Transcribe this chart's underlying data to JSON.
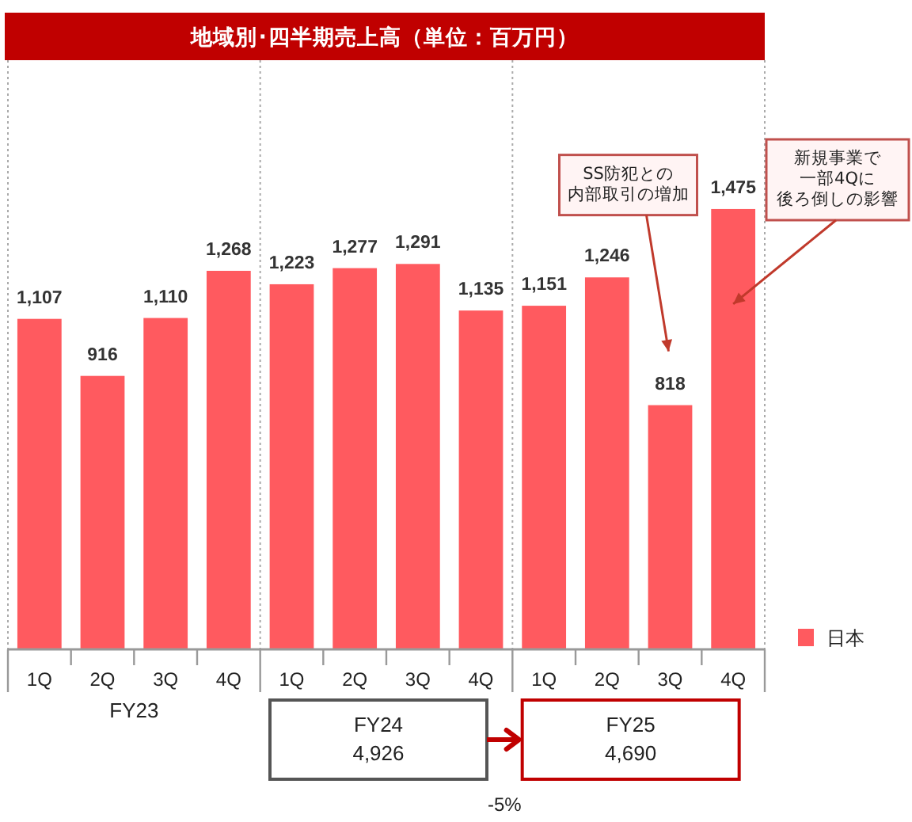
{
  "chart_data": {
    "type": "bar",
    "title": "地域別･四半期売上高（単位：百万円）",
    "categories": [
      "1Q",
      "2Q",
      "3Q",
      "4Q",
      "1Q",
      "2Q",
      "3Q",
      "4Q",
      "1Q",
      "2Q",
      "3Q",
      "4Q"
    ],
    "series": [
      {
        "name": "日本",
        "color": "#ff5a5f",
        "values": [
          1107,
          916,
          1110,
          1268,
          1223,
          1277,
          1291,
          1135,
          1151,
          1246,
          818,
          1475
        ],
        "value_labels": [
          "1,107",
          "916",
          "1,110",
          "1,268",
          "1,223",
          "1,277",
          "1,291",
          "1,135",
          "1,151",
          "1,246",
          "818",
          "1,475"
        ]
      }
    ],
    "legend": "bottom right",
    "annotations": [
      "FY23",
      "FY24\n4,926",
      "FY25\n4,690",
      "-5%",
      "SS防犯との内部取引の増加",
      "新規事業で一部4Qに後ろ倒しの影響"
    ]
  }
}
